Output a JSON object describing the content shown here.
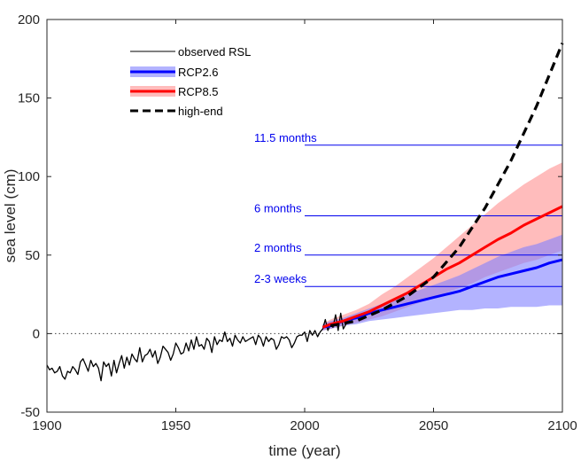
{
  "chart_data": {
    "type": "line",
    "xlabel": "time (year)",
    "ylabel": "sea level (cm)",
    "xlim": [
      1900,
      2100
    ],
    "ylim": [
      -50,
      200
    ],
    "xticks": [
      1900,
      1950,
      2000,
      2050,
      2100
    ],
    "yticks": [
      -50,
      0,
      50,
      100,
      150,
      200
    ],
    "zero_line": "dotted",
    "grid": false,
    "legend_position": "top-left",
    "colors": {
      "observed": "#000000",
      "rcp26": "#0000ff",
      "rcp26_band": "#8080ff",
      "rcp85": "#ff0000",
      "rcp85_band": "#ff9090",
      "highend": "#000000",
      "annotation": "#0000ee",
      "axis": "#262626"
    },
    "series": [
      {
        "name": "observed RSL",
        "style": "solid-thin",
        "x": [
          1900,
          1901,
          1902,
          1903,
          1904,
          1905,
          1906,
          1907,
          1908,
          1909,
          1910,
          1911,
          1912,
          1913,
          1914,
          1915,
          1916,
          1917,
          1918,
          1919,
          1920,
          1921,
          1922,
          1923,
          1924,
          1925,
          1926,
          1927,
          1928,
          1929,
          1930,
          1931,
          1932,
          1933,
          1934,
          1935,
          1936,
          1937,
          1938,
          1939,
          1940,
          1941,
          1942,
          1943,
          1944,
          1945,
          1946,
          1947,
          1948,
          1949,
          1950,
          1951,
          1952,
          1953,
          1954,
          1955,
          1956,
          1957,
          1958,
          1959,
          1960,
          1961,
          1962,
          1963,
          1964,
          1965,
          1966,
          1967,
          1968,
          1969,
          1970,
          1971,
          1972,
          1973,
          1974,
          1975,
          1976,
          1977,
          1978,
          1979,
          1980,
          1981,
          1982,
          1983,
          1984,
          1985,
          1986,
          1987,
          1988,
          1989,
          1990,
          1991,
          1992,
          1993,
          1994,
          1995,
          1996,
          1997,
          1998,
          1999,
          2000,
          2001,
          2002,
          2003,
          2004,
          2005,
          2006,
          2007,
          2008,
          2009,
          2010,
          2011,
          2012,
          2013,
          2014,
          2015,
          2016,
          2017
        ],
        "y": [
          -20,
          -23,
          -22,
          -25,
          -24,
          -21,
          -27,
          -29,
          -24,
          -25,
          -21,
          -23,
          -26,
          -18,
          -16,
          -20,
          -24,
          -17,
          -21,
          -19,
          -22,
          -30,
          -18,
          -21,
          -19,
          -27,
          -17,
          -25,
          -19,
          -14,
          -22,
          -15,
          -20,
          -13,
          -16,
          -18,
          -9,
          -18,
          -14,
          -13,
          -10,
          -15,
          -11,
          -19,
          -15,
          -8,
          -10,
          -12,
          -17,
          -13,
          -6,
          -9,
          -13,
          -12,
          -6,
          -11,
          -4,
          -10,
          -2,
          -8,
          -7,
          -10,
          -3,
          -5,
          -12,
          -2,
          -7,
          -4,
          -5,
          1,
          -5,
          -3,
          -8,
          -1,
          -4,
          -6,
          -2,
          -5,
          -4,
          -3,
          -2,
          -7,
          -1,
          -3,
          -8,
          -2,
          -5,
          -3,
          -4,
          -10,
          -7,
          -2,
          -3,
          -2,
          -4,
          -9,
          -6,
          -2,
          -1,
          -1,
          1,
          -5,
          2,
          -1,
          2,
          -2,
          1,
          3,
          9,
          2,
          6,
          4,
          12,
          2,
          13,
          3,
          6,
          10
        ]
      },
      {
        "name": "RCP2.6",
        "style": "solid-thick",
        "x": [
          2007,
          2010,
          2015,
          2020,
          2025,
          2030,
          2035,
          2040,
          2045,
          2050,
          2055,
          2060,
          2065,
          2070,
          2075,
          2080,
          2085,
          2090,
          2095,
          2100
        ],
        "y": [
          4,
          5,
          8,
          10,
          13,
          15,
          17,
          19,
          21,
          23,
          25,
          27,
          30,
          33,
          36,
          38,
          40,
          42,
          45,
          47
        ],
        "band_lower": [
          2,
          3,
          5,
          6,
          8,
          9,
          10,
          11,
          12,
          13,
          14,
          15,
          15,
          16,
          16,
          17,
          17,
          17,
          18,
          18
        ],
        "band_upper": [
          6,
          8,
          10,
          13,
          16,
          19,
          22,
          25,
          28,
          31,
          34,
          37,
          41,
          45,
          49,
          52,
          55,
          57,
          60,
          63
        ]
      },
      {
        "name": "RCP8.5",
        "style": "solid-thick",
        "x": [
          2007,
          2010,
          2015,
          2020,
          2025,
          2030,
          2035,
          2040,
          2045,
          2050,
          2055,
          2060,
          2065,
          2070,
          2075,
          2080,
          2085,
          2090,
          2095,
          2100
        ],
        "y": [
          4,
          6,
          8,
          11,
          14,
          18,
          22,
          26,
          31,
          36,
          41,
          45,
          50,
          55,
          60,
          64,
          69,
          73,
          77,
          81
        ],
        "band_lower": [
          2,
          3,
          5,
          7,
          9,
          11,
          14,
          17,
          20,
          23,
          26,
          29,
          32,
          36,
          39,
          42,
          45,
          47,
          50,
          53
        ],
        "band_upper": [
          6,
          9,
          12,
          15,
          19,
          25,
          30,
          36,
          42,
          48,
          55,
          62,
          69,
          76,
          83,
          89,
          95,
          100,
          105,
          109
        ]
      },
      {
        "name": "high-end",
        "style": "dashed",
        "x": [
          2010,
          2020,
          2030,
          2040,
          2050,
          2060,
          2070,
          2080,
          2090,
          2100
        ],
        "y": [
          5,
          8,
          15,
          24,
          36,
          55,
          80,
          110,
          145,
          185
        ]
      }
    ],
    "annotations": [
      {
        "label": "11.5 months",
        "y": 120,
        "x_start": 2000,
        "x_end": 2100
      },
      {
        "label": "6 months",
        "y": 75,
        "x_start": 2000,
        "x_end": 2100
      },
      {
        "label": "2 months",
        "y": 50,
        "x_start": 2000,
        "x_end": 2100
      },
      {
        "label": "2-3 weeks",
        "y": 30,
        "x_start": 2000,
        "x_end": 2100
      }
    ]
  }
}
